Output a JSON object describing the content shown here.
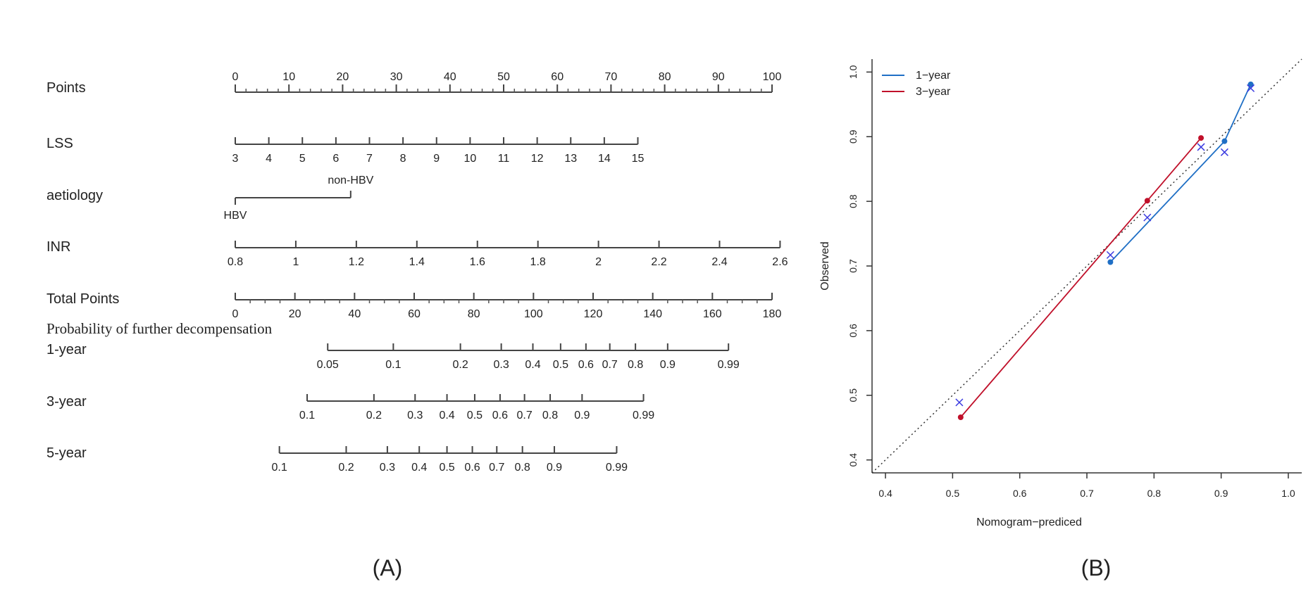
{
  "panel_a_label": "(A)",
  "panel_b_label": "(B)",
  "prob_heading": "Probability of further decompensation",
  "chart_data": [
    {
      "type": "nomogram",
      "rows": [
        {
          "label": "Points",
          "ticks": [
            "0",
            "10",
            "20",
            "30",
            "40",
            "50",
            "60",
            "70",
            "80",
            "90",
            "100"
          ],
          "values": [
            0,
            10,
            20,
            30,
            40,
            50,
            60,
            70,
            80,
            90,
            100
          ],
          "minor_ticks_per_major": 5
        },
        {
          "label": "LSS",
          "ticks": [
            "3",
            "4",
            "5",
            "6",
            "7",
            "8",
            "9",
            "10",
            "11",
            "12",
            "13",
            "14",
            "15"
          ],
          "points_range": [
            0,
            75
          ]
        },
        {
          "label": "aetiology",
          "ticks": [
            "HBV",
            "non-HBV"
          ],
          "points": [
            0,
            21.5
          ]
        },
        {
          "label": "INR",
          "ticks": [
            "0.8",
            "1",
            "1.2",
            "1.4",
            "1.6",
            "1.8",
            "2",
            "2.2",
            "2.4",
            "2.6"
          ],
          "values": [
            0.8,
            1,
            1.2,
            1.4,
            1.6,
            1.8,
            2,
            2.2,
            2.4,
            2.6
          ],
          "points_range": [
            0,
            101.5
          ]
        },
        {
          "label": "Total Points",
          "ticks": [
            "0",
            "20",
            "40",
            "60",
            "80",
            "100",
            "120",
            "140",
            "160",
            "180"
          ],
          "values": [
            0,
            20,
            40,
            60,
            80,
            100,
            120,
            140,
            160,
            180
          ],
          "minor_ticks_per_major": 4
        },
        {
          "label": "1-year",
          "ticks": [
            "0.05",
            "0.1",
            "0.2",
            "0.3",
            "0.4",
            "0.5",
            "0.6",
            "0.7",
            "0.8",
            "0.9",
            "0.99"
          ],
          "total_points": [
            31,
            53,
            75.5,
            89.2,
            99.8,
            109.1,
            117.6,
            125.6,
            134.2,
            145,
            165.4
          ]
        },
        {
          "label": "3-year",
          "ticks": [
            "0.1",
            "0.2",
            "0.3",
            "0.4",
            "0.5",
            "0.6",
            "0.7",
            "0.8",
            "0.9",
            "0.99"
          ],
          "total_points": [
            24.1,
            46.5,
            60.3,
            71,
            80.3,
            88.8,
            97,
            105.6,
            116.3,
            136.9
          ]
        },
        {
          "label": "5-year",
          "ticks": [
            "0.1",
            "0.2",
            "0.3",
            "0.4",
            "0.5",
            "0.6",
            "0.7",
            "0.8",
            "0.9",
            "0.99"
          ],
          "total_points": [
            14.8,
            37.2,
            51,
            61.7,
            71,
            79.5,
            87.7,
            96.3,
            107,
            127.9
          ]
        }
      ]
    },
    {
      "type": "line",
      "xlabel": "Nomogram−prediced",
      "ylabel": "Observed",
      "xlim": [
        0.38,
        1.02
      ],
      "ylim": [
        0.38,
        1.02
      ],
      "xticks": [
        0.4,
        0.5,
        0.6,
        0.7,
        0.8,
        0.9,
        1.0
      ],
      "yticks": [
        0.4,
        0.5,
        0.6,
        0.7,
        0.8,
        0.9,
        1.0
      ],
      "xtick_labels": [
        "0.4",
        "0.5",
        "0.6",
        "0.7",
        "0.8",
        "0.9",
        "1.0"
      ],
      "ytick_labels": [
        "0.4",
        "0.5",
        "0.6",
        "0.7",
        "0.8",
        "0.9",
        "1.0"
      ],
      "legend_position": "top-left",
      "reference_line": "diagonal dotted",
      "series": [
        {
          "name": "1−year",
          "color": "#1f6fc5",
          "points": [
            [
              0.735,
              0.706
            ],
            [
              0.905,
              0.893
            ],
            [
              0.944,
              0.981
            ]
          ],
          "corrected": [
            [
              0.735,
              0.717
            ],
            [
              0.79,
              0.775
            ],
            [
              0.905,
              0.876
            ],
            [
              0.944,
              0.975
            ]
          ]
        },
        {
          "name": "3−year",
          "color": "#c0102a",
          "points": [
            [
              0.512,
              0.466
            ],
            [
              0.79,
              0.801
            ],
            [
              0.87,
              0.898
            ]
          ],
          "corrected": [
            [
              0.51,
              0.489
            ],
            [
              0.87,
              0.884
            ]
          ]
        }
      ]
    }
  ]
}
